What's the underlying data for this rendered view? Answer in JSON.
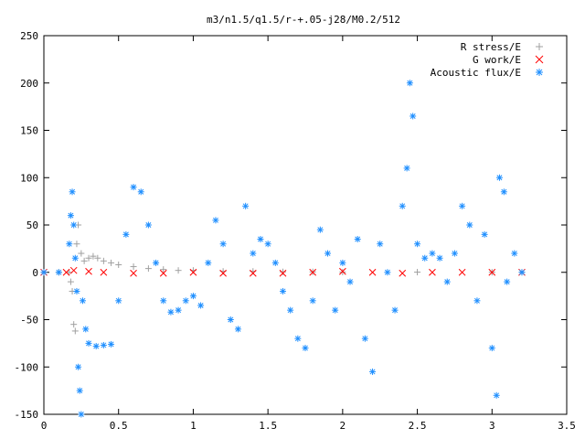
{
  "chart_data": {
    "type": "scatter",
    "title": "m3/n1.5/q1.5/r-+.05-j28/M0.2/512",
    "xlabel": "",
    "ylabel": "",
    "xlim": [
      0,
      3.5
    ],
    "ylim": [
      -150,
      250
    ],
    "xticks": [
      "0",
      "0.5",
      "1",
      "1.5",
      "2",
      "2.5",
      "3",
      "3.5"
    ],
    "yticks": [
      "-150",
      "-100",
      "-50",
      "0",
      "50",
      "100",
      "150",
      "200",
      "250"
    ],
    "grid": false,
    "legend_position": "top-right",
    "series": [
      {
        "name": "R stress/E",
        "marker": "+",
        "color": "#a0a0a0",
        "points": [
          [
            0.0,
            0
          ],
          [
            0.1,
            0
          ],
          [
            0.17,
            0
          ],
          [
            0.18,
            -10
          ],
          [
            0.19,
            -20
          ],
          [
            0.2,
            -55
          ],
          [
            0.21,
            -62
          ],
          [
            0.22,
            30
          ],
          [
            0.23,
            50
          ],
          [
            0.25,
            20
          ],
          [
            0.27,
            12
          ],
          [
            0.3,
            15
          ],
          [
            0.33,
            17
          ],
          [
            0.36,
            15
          ],
          [
            0.4,
            12
          ],
          [
            0.45,
            10
          ],
          [
            0.5,
            8
          ],
          [
            0.6,
            6
          ],
          [
            0.7,
            4
          ],
          [
            0.8,
            3
          ],
          [
            0.9,
            2
          ],
          [
            1.0,
            2
          ],
          [
            1.2,
            1
          ],
          [
            1.4,
            1
          ],
          [
            1.6,
            0.5
          ],
          [
            1.8,
            0.5
          ],
          [
            2.0,
            0.3
          ],
          [
            2.5,
            0.2
          ],
          [
            3.0,
            0.1
          ],
          [
            3.2,
            0
          ]
        ]
      },
      {
        "name": "G work/E",
        "marker": "x",
        "color": "#ff0000",
        "points": [
          [
            0.0,
            0
          ],
          [
            0.15,
            0
          ],
          [
            0.2,
            2
          ],
          [
            0.3,
            1
          ],
          [
            0.4,
            0
          ],
          [
            0.6,
            -1
          ],
          [
            0.8,
            -1
          ],
          [
            1.0,
            0
          ],
          [
            1.2,
            -1
          ],
          [
            1.4,
            -1
          ],
          [
            1.6,
            -1
          ],
          [
            1.8,
            0
          ],
          [
            2.0,
            1
          ],
          [
            2.2,
            0
          ],
          [
            2.4,
            -1
          ],
          [
            2.6,
            0
          ],
          [
            2.8,
            0
          ],
          [
            3.0,
            0
          ],
          [
            3.2,
            0
          ]
        ]
      },
      {
        "name": "Acoustic flux/E",
        "marker": "*",
        "color": "#1f8fff",
        "points": [
          [
            0.0,
            0
          ],
          [
            0.1,
            0
          ],
          [
            0.17,
            30
          ],
          [
            0.18,
            60
          ],
          [
            0.19,
            85
          ],
          [
            0.2,
            50
          ],
          [
            0.21,
            15
          ],
          [
            0.22,
            -20
          ],
          [
            0.23,
            -100
          ],
          [
            0.24,
            -125
          ],
          [
            0.25,
            -150
          ],
          [
            0.26,
            -30
          ],
          [
            0.28,
            -60
          ],
          [
            0.3,
            -75
          ],
          [
            0.35,
            -78
          ],
          [
            0.4,
            -77
          ],
          [
            0.45,
            -76
          ],
          [
            0.5,
            -30
          ],
          [
            0.55,
            40
          ],
          [
            0.6,
            90
          ],
          [
            0.65,
            85
          ],
          [
            0.7,
            50
          ],
          [
            0.75,
            10
          ],
          [
            0.8,
            -30
          ],
          [
            0.85,
            -42
          ],
          [
            0.9,
            -40
          ],
          [
            0.95,
            -30
          ],
          [
            1.0,
            -25
          ],
          [
            1.05,
            -35
          ],
          [
            1.1,
            10
          ],
          [
            1.15,
            55
          ],
          [
            1.2,
            30
          ],
          [
            1.25,
            -50
          ],
          [
            1.3,
            -60
          ],
          [
            1.35,
            70
          ],
          [
            1.4,
            20
          ],
          [
            1.45,
            35
          ],
          [
            1.5,
            30
          ],
          [
            1.55,
            10
          ],
          [
            1.6,
            -20
          ],
          [
            1.65,
            -40
          ],
          [
            1.7,
            -70
          ],
          [
            1.75,
            -80
          ],
          [
            1.8,
            -30
          ],
          [
            1.85,
            45
          ],
          [
            1.9,
            20
          ],
          [
            1.95,
            -40
          ],
          [
            2.0,
            10
          ],
          [
            2.05,
            -10
          ],
          [
            2.1,
            35
          ],
          [
            2.15,
            -70
          ],
          [
            2.2,
            -105
          ],
          [
            2.25,
            30
          ],
          [
            2.3,
            0
          ],
          [
            2.35,
            -40
          ],
          [
            2.4,
            70
          ],
          [
            2.43,
            110
          ],
          [
            2.45,
            200
          ],
          [
            2.47,
            165
          ],
          [
            2.5,
            30
          ],
          [
            2.55,
            15
          ],
          [
            2.6,
            20
          ],
          [
            2.65,
            15
          ],
          [
            2.7,
            -10
          ],
          [
            2.75,
            20
          ],
          [
            2.8,
            70
          ],
          [
            2.85,
            50
          ],
          [
            2.9,
            -30
          ],
          [
            2.95,
            40
          ],
          [
            3.0,
            -80
          ],
          [
            3.03,
            -130
          ],
          [
            3.05,
            100
          ],
          [
            3.08,
            85
          ],
          [
            3.1,
            -10
          ],
          [
            3.15,
            20
          ],
          [
            3.2,
            0
          ]
        ]
      }
    ]
  }
}
